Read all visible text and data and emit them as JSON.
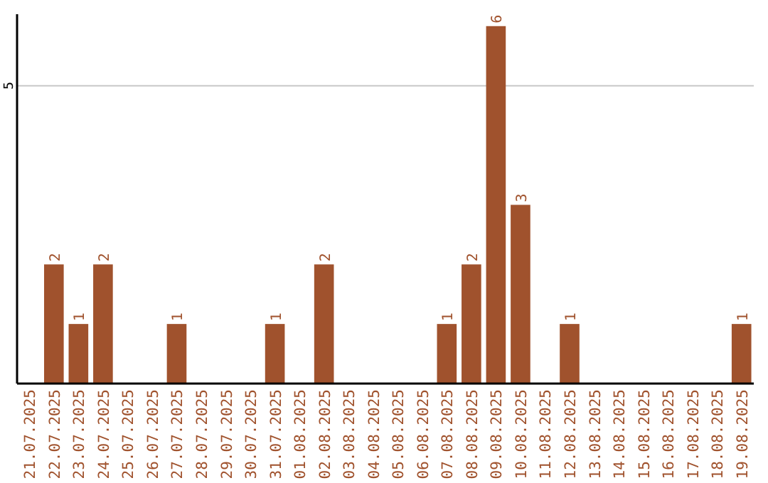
{
  "chart_data": {
    "type": "bar",
    "categories": [
      "21.07.2025",
      "22.07.2025",
      "23.07.2025",
      "24.07.2025",
      "25.07.2025",
      "26.07.2025",
      "27.07.2025",
      "28.07.2025",
      "29.07.2025",
      "30.07.2025",
      "31.07.2025",
      "01.08.2025",
      "02.08.2025",
      "03.08.2025",
      "04.08.2025",
      "05.08.2025",
      "06.08.2025",
      "07.08.2025",
      "08.08.2025",
      "09.08.2025",
      "10.08.2025",
      "11.08.2025",
      "12.08.2025",
      "13.08.2025",
      "14.08.2025",
      "15.08.2025",
      "16.08.2025",
      "17.08.2025",
      "18.08.2025",
      "19.08.2025"
    ],
    "values": [
      0,
      2,
      1,
      2,
      0,
      0,
      1,
      0,
      0,
      0,
      1,
      0,
      2,
      0,
      0,
      0,
      0,
      1,
      2,
      6,
      3,
      0,
      1,
      0,
      0,
      0,
      0,
      0,
      0,
      1
    ],
    "value_labels": [
      null,
      "2",
      "1",
      "2",
      null,
      null,
      "1",
      null,
      null,
      null,
      "1",
      null,
      "2",
      null,
      null,
      null,
      null,
      "1",
      "2",
      "6",
      "3",
      null,
      "1",
      null,
      null,
      null,
      null,
      null,
      null,
      "1"
    ],
    "color": "#a0522d",
    "ylim": [
      0,
      6.2
    ],
    "yticks": [
      5
    ],
    "grid": "y"
  }
}
